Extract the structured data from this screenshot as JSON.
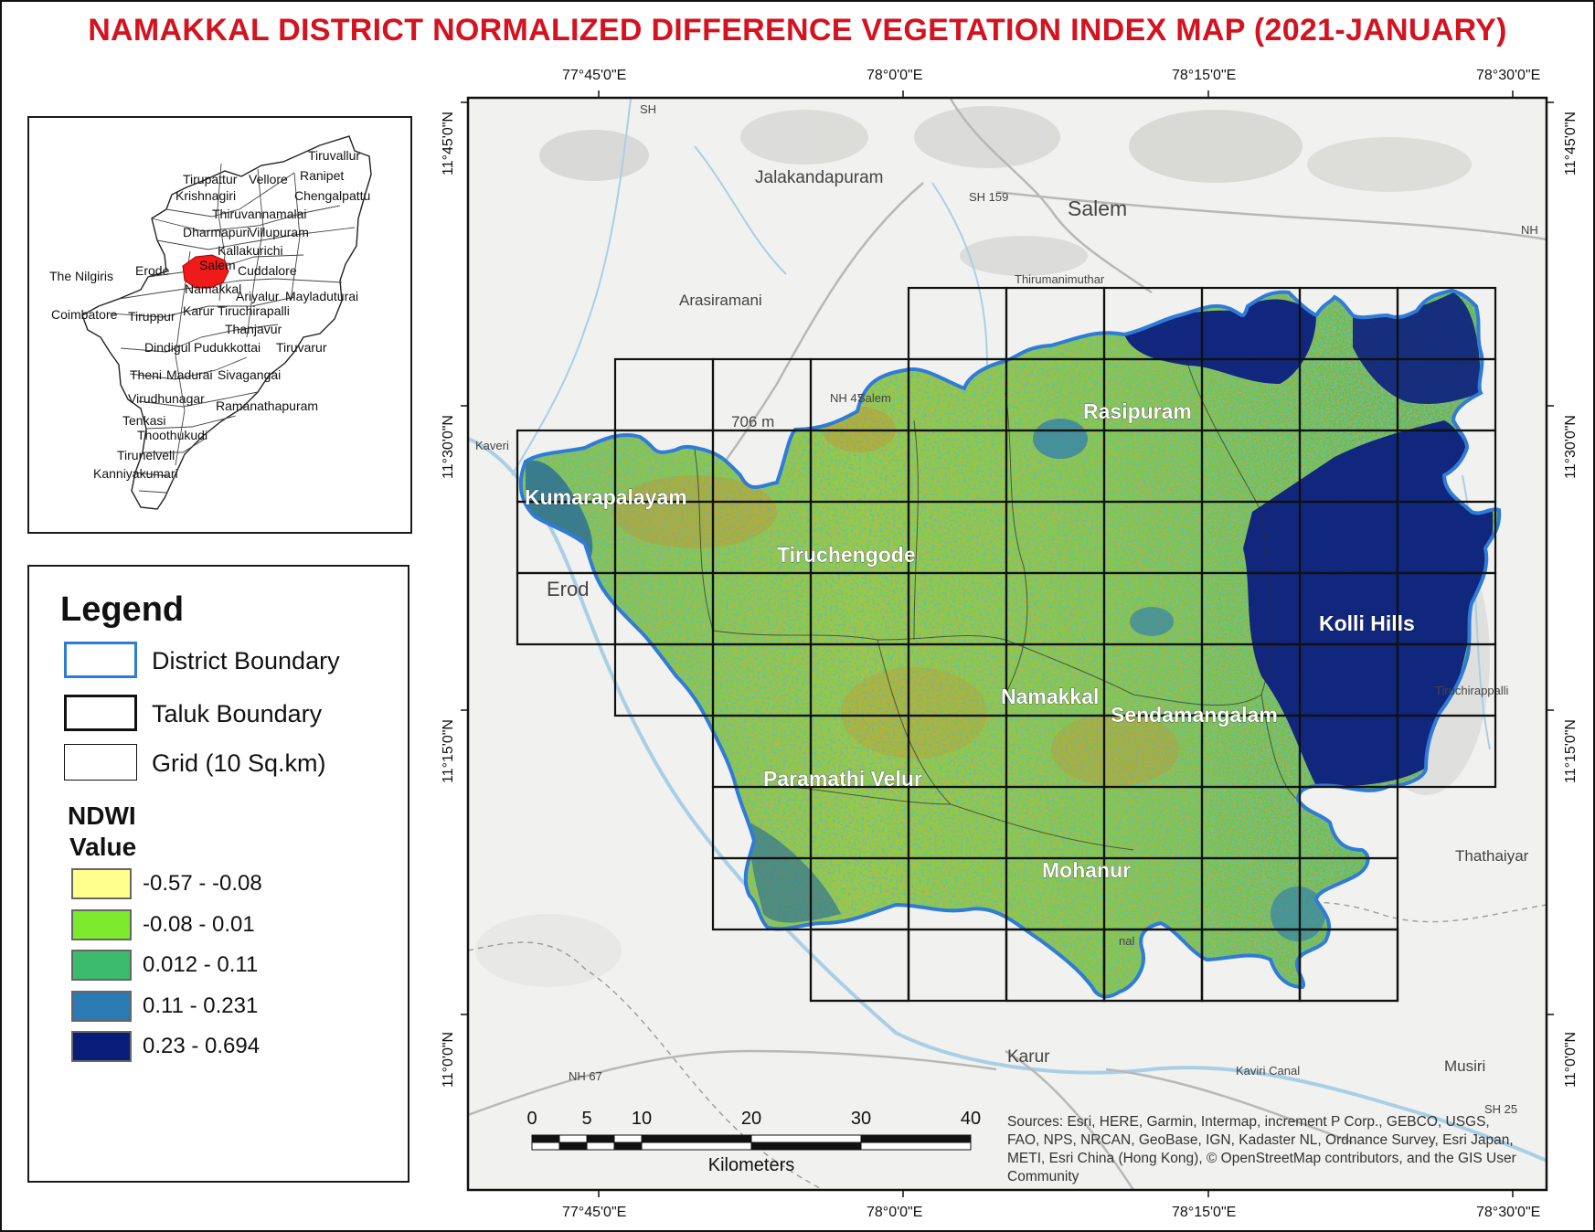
{
  "title": "NAMAKKAL DISTRICT NORMALIZED DIFFERENCE VEGETATION INDEX  MAP (2021-JANUARY)",
  "inset_labels": [
    "Tiruvallur",
    "Ranipet",
    "Tirupattur",
    "Vellore",
    "Chengalpattu",
    "Krishnagiri",
    "Thiruvannamalai",
    "Dharmapuri",
    "Villupuram",
    "Kallakurichi",
    "Salem",
    "The Nilgiris",
    "Erode",
    "Cuddalore",
    "Namakkal",
    "Ariyalur",
    "Mayladuturai",
    "Karur",
    "Tiruchirapalli",
    "Coimbatore",
    "Tiruppur",
    "Thanjavur",
    "Dindigul",
    "Pudukkottai",
    "Tiruvarur",
    "Theni",
    "Madurai",
    "Sivagangai",
    "Virudhunagar",
    "Ramanathapuram",
    "Tenkasi",
    "Thoothukudi",
    "Tirunelveli",
    "Kanniyakumari"
  ],
  "legend": {
    "title": "Legend",
    "items": [
      {
        "label": "District Boundary",
        "color": "#2f7bd8"
      },
      {
        "label": "Taluk Boundary",
        "color": "#111111"
      },
      {
        "label": "Grid (10 Sq.km)",
        "color": "#111111"
      }
    ],
    "ndwi_title_1": "NDWI",
    "ndwi_title_2": "Value",
    "classes": [
      {
        "label": "-0.57 - -0.08",
        "color": "#ffff8c"
      },
      {
        "label": "-0.08 - 0.01",
        "color": "#7dea2e"
      },
      {
        "label": "0.012 - 0.11",
        "color": "#3dbb6c"
      },
      {
        "label": "0.11 - 0.231",
        "color": "#2a7ab3"
      },
      {
        "label": "0.23 - 0.694",
        "color": "#0a1c7a"
      }
    ]
  },
  "top_lon_labels": [
    "77°45'0\"E",
    "78°0'0\"E",
    "78°15'0\"E",
    "78°30'0\"E"
  ],
  "bottom_lon_labels": [
    "77°45'0\"E",
    "78°0'0\"E",
    "78°15'0\"E",
    "78°30'0\"E"
  ],
  "lat_labels": [
    "11°45'0\"N",
    "11°30'0\"N",
    "11°15'0\"N",
    "11°0'0\"N"
  ],
  "basemap_labels": [
    "Jalakandapuram",
    "Salem",
    "Arasiramani",
    "SH 159",
    "706 m",
    "Erod",
    "Thathaiyar",
    "Karur",
    "Musiri",
    "NH 67",
    "Kaviri Canal",
    "SH 25",
    "NH 47",
    "NH",
    "Salem",
    "SH",
    "Thirumanimuthar",
    "Tiruchirappalli",
    "Kaveri",
    "nal"
  ],
  "taluk_labels": [
    "Rasipuram",
    "Kumarapalayam",
    "Tiruchengode",
    "Kolli Hills",
    "Namakkal",
    "Sendamangalam",
    "Paramathi Velur",
    "Mohanur"
  ],
  "scale": {
    "ticks": [
      "0",
      "5",
      "10",
      "20",
      "30",
      "40"
    ],
    "units": "Kilometers"
  },
  "credits": "Sources: Esri, HERE, Garmin, Intermap, increment P Corp., GEBCO, USGS, FAO, NPS, NRCAN, GeoBase, IGN, Kadaster NL, Ordnance Survey, Esri Japan, METI, Esri China (Hong Kong), © OpenStreetMap contributors, and the GIS User Community"
}
